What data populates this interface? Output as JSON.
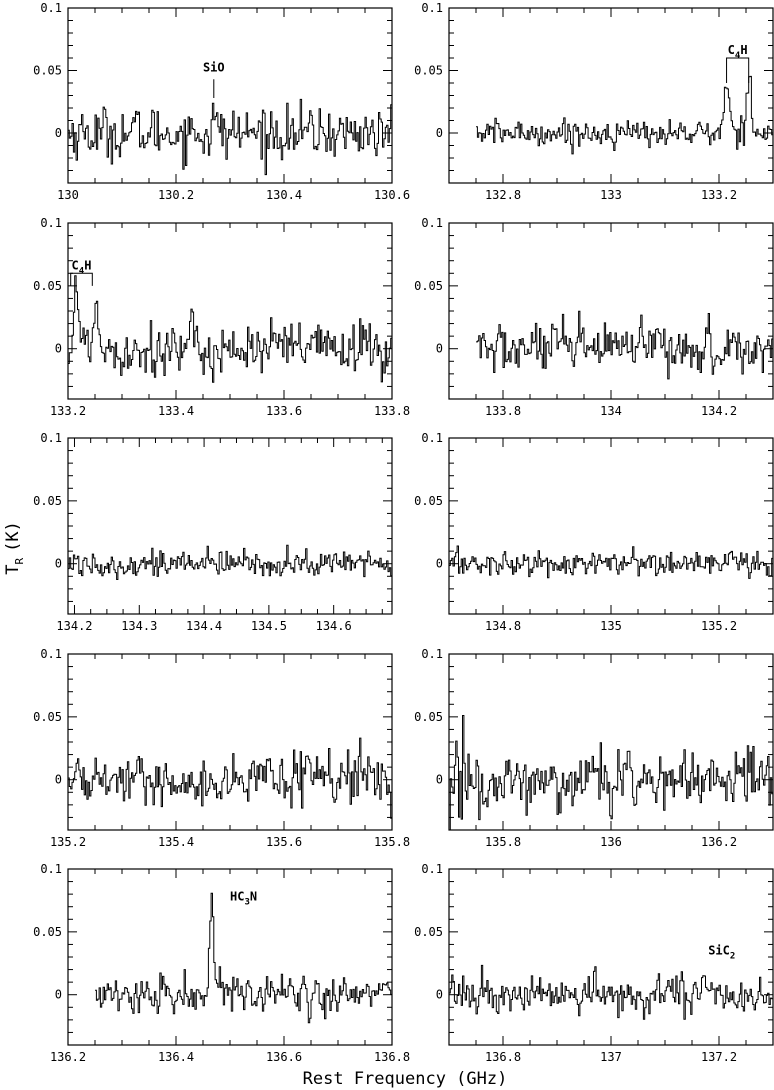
{
  "figure": {
    "ylabel_main": "T",
    "ylabel_sub": "R",
    "ylabel_unit": "(K)",
    "xlabel": "Rest Frequency (GHz)"
  },
  "chart_data": [
    {
      "type": "line",
      "xlim": [
        130.0,
        130.6
      ],
      "ylim": [
        -0.04,
        0.1
      ],
      "xticks": [
        130,
        130.2,
        130.4,
        130.6
      ],
      "xtick_labels": [
        "130",
        "130.2",
        "130.4",
        "130.6"
      ],
      "yticks": [
        0,
        0.05,
        0.1
      ],
      "ytick_labels": [
        "0",
        "0.05",
        "0.1"
      ],
      "spectrum": {
        "x_start": 130.0,
        "x_end": 130.6,
        "noise_rms": 0.012,
        "features": [
          {
            "center": 130.27,
            "width": 0.004,
            "amplitude": 0.01
          }
        ]
      },
      "annotations": [
        {
          "text": "SiO",
          "x": 130.27,
          "tick_top_y": 0.043,
          "tick_bottom_y": 0.028
        }
      ]
    },
    {
      "type": "line",
      "xlim": [
        132.7,
        133.3
      ],
      "ylim": [
        -0.04,
        0.1
      ],
      "xticks": [
        132.8,
        133.0,
        133.2
      ],
      "xtick_labels": [
        "132.8",
        "133",
        "133.2"
      ],
      "yticks": [
        0,
        0.05,
        0.1
      ],
      "ytick_labels": [
        "0",
        "0.05",
        "0.1"
      ],
      "spectrum": {
        "x_start": 132.75,
        "x_end": 133.3,
        "noise_rms": 0.006,
        "features": [
          {
            "center": 133.214,
            "width": 0.005,
            "amplitude": 0.038
          },
          {
            "center": 133.255,
            "width": 0.005,
            "amplitude": 0.045
          }
        ]
      },
      "annotations": [
        {
          "text": "C",
          "sub": "4",
          "suffix": "H",
          "bracket": [
            133.214,
            133.255
          ],
          "bracket_y": 0.06,
          "leg_y": 0.04
        }
      ]
    },
    {
      "type": "line",
      "xlim": [
        133.2,
        133.8
      ],
      "ylim": [
        -0.04,
        0.1
      ],
      "xticks": [
        133.2,
        133.4,
        133.6,
        133.8
      ],
      "xtick_labels": [
        "133.2",
        "133.4",
        "133.6",
        "133.8"
      ],
      "yticks": [
        0,
        0.05,
        0.1
      ],
      "ytick_labels": [
        "0",
        "0.05",
        "0.1"
      ],
      "spectrum": {
        "x_start": 133.2,
        "x_end": 133.8,
        "noise_rms": 0.013,
        "features": [
          {
            "center": 133.214,
            "width": 0.005,
            "amplitude": 0.045
          },
          {
            "center": 133.25,
            "width": 0.005,
            "amplitude": 0.035
          }
        ]
      },
      "annotations": [
        {
          "text": "C",
          "sub": "4",
          "suffix": "H",
          "bracket": [
            133.205,
            133.245
          ],
          "bracket_y": 0.06,
          "leg_y": 0.05
        }
      ]
    },
    {
      "type": "line",
      "xlim": [
        133.7,
        134.3
      ],
      "ylim": [
        -0.04,
        0.1
      ],
      "xticks": [
        133.8,
        134.0,
        134.2
      ],
      "xtick_labels": [
        "133.8",
        "134",
        "134.2"
      ],
      "yticks": [
        0,
        0.05,
        0.1
      ],
      "ytick_labels": [
        "0",
        "0.05",
        "0.1"
      ],
      "spectrum": {
        "x_start": 133.75,
        "x_end": 134.3,
        "noise_rms": 0.012,
        "features": []
      },
      "annotations": []
    },
    {
      "type": "line",
      "xlim": [
        134.19,
        134.69
      ],
      "ylim": [
        -0.04,
        0.1
      ],
      "xticks": [
        134.2,
        134.3,
        134.4,
        134.5,
        134.6
      ],
      "xtick_labels": [
        "134.2",
        "134.3",
        "134.4",
        "134.5",
        "134.6"
      ],
      "yticks": [
        0,
        0.05,
        0.1
      ],
      "ytick_labels": [
        "0",
        "0.05",
        "0.1"
      ],
      "spectrum": {
        "x_start": 134.19,
        "x_end": 134.69,
        "noise_rms": 0.006,
        "features": []
      },
      "annotations": []
    },
    {
      "type": "line",
      "xlim": [
        134.7,
        135.3
      ],
      "ylim": [
        -0.04,
        0.1
      ],
      "xticks": [
        134.8,
        135.0,
        135.2
      ],
      "xtick_labels": [
        "134.8",
        "135",
        "135.2"
      ],
      "yticks": [
        0,
        0.05,
        0.1
      ],
      "ytick_labels": [
        "0",
        "0.05",
        "0.1"
      ],
      "spectrum": {
        "x_start": 134.7,
        "x_end": 135.3,
        "noise_rms": 0.006,
        "features": []
      },
      "annotations": []
    },
    {
      "type": "line",
      "xlim": [
        135.2,
        135.8
      ],
      "ylim": [
        -0.04,
        0.1
      ],
      "xticks": [
        135.2,
        135.4,
        135.6,
        135.8
      ],
      "xtick_labels": [
        "135.2",
        "135.4",
        "135.6",
        "135.8"
      ],
      "yticks": [
        0,
        0.05,
        0.1
      ],
      "ytick_labels": [
        "0",
        "0.05",
        "0.1"
      ],
      "spectrum": {
        "x_start": 135.2,
        "x_end": 135.8,
        "noise_rms": 0.011,
        "features": []
      },
      "annotations": []
    },
    {
      "type": "line",
      "xlim": [
        135.7,
        136.3
      ],
      "ylim": [
        -0.04,
        0.1
      ],
      "xticks": [
        135.8,
        136.0,
        136.2
      ],
      "xtick_labels": [
        "135.8",
        "136",
        "136.2"
      ],
      "yticks": [
        0,
        0.05,
        0.1
      ],
      "ytick_labels": [
        "0",
        "0.05",
        "0.1"
      ],
      "spectrum": {
        "x_start": 135.7,
        "x_end": 136.3,
        "noise_rms": 0.013,
        "edge_boost": 0.035,
        "features": []
      },
      "annotations": []
    },
    {
      "type": "line",
      "xlim": [
        136.2,
        136.8
      ],
      "ylim": [
        -0.04,
        0.1
      ],
      "xticks": [
        136.2,
        136.4,
        136.6,
        136.8
      ],
      "xtick_labels": [
        "136.2",
        "136.4",
        "136.6",
        "136.8"
      ],
      "yticks": [
        0,
        0.05,
        0.1
      ],
      "ytick_labels": [
        "0",
        "0.05",
        "0.1"
      ],
      "spectrum": {
        "x_start": 136.25,
        "x_end": 136.8,
        "noise_rms": 0.009,
        "features": [
          {
            "center": 136.465,
            "width": 0.004,
            "amplitude": 0.075
          }
        ]
      },
      "annotations": [
        {
          "text": "HC",
          "sub": "3",
          "suffix": "N",
          "x": 136.5,
          "label_y": 0.075
        }
      ]
    },
    {
      "type": "line",
      "xlim": [
        136.7,
        137.3
      ],
      "ylim": [
        -0.04,
        0.1
      ],
      "xticks": [
        136.8,
        137.0,
        137.2
      ],
      "xtick_labels": [
        "136.8",
        "137",
        "137.2"
      ],
      "yticks": [
        0,
        0.05,
        0.1
      ],
      "ytick_labels": [
        "0",
        "0.05",
        "0.1"
      ],
      "spectrum": {
        "x_start": 136.7,
        "x_end": 137.3,
        "noise_rms": 0.008,
        "features": [
          {
            "center": 137.18,
            "width": 0.006,
            "amplitude": 0.015
          }
        ]
      },
      "annotations": [
        {
          "text": "SiC",
          "sub": "2",
          "suffix": "",
          "x": 137.18,
          "label_y": 0.032
        }
      ]
    }
  ]
}
